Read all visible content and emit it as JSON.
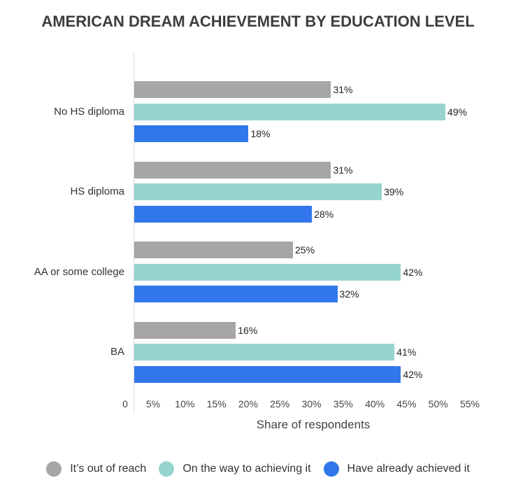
{
  "chart_data": {
    "type": "bar",
    "orientation": "horizontal",
    "title": "AMERICAN DREAM ACHIEVEMENT BY EDUCATION LEVEL",
    "xlabel": "Share of respondents",
    "ylabel": "",
    "xlim": [
      0,
      55
    ],
    "x_ticks": [
      "0",
      "5%",
      "10%",
      "15%",
      "20%",
      "25%",
      "30%",
      "35%",
      "40%",
      "45%",
      "50%",
      "55%"
    ],
    "categories": [
      "No HS diploma",
      "HS diploma",
      "AA or some college",
      "BA"
    ],
    "series": [
      {
        "name": "It’s out of reach",
        "color": "#a6a6a6",
        "values": [
          31,
          31,
          25,
          16
        ]
      },
      {
        "name": "On the way to achieving it",
        "color": "#96d4cf",
        "values": [
          49,
          39,
          42,
          41
        ]
      },
      {
        "name": "Have already achieved it",
        "color": "#3177eb",
        "values": [
          18,
          28,
          32,
          42
        ]
      }
    ],
    "legend_position": "bottom",
    "grid": false
  }
}
